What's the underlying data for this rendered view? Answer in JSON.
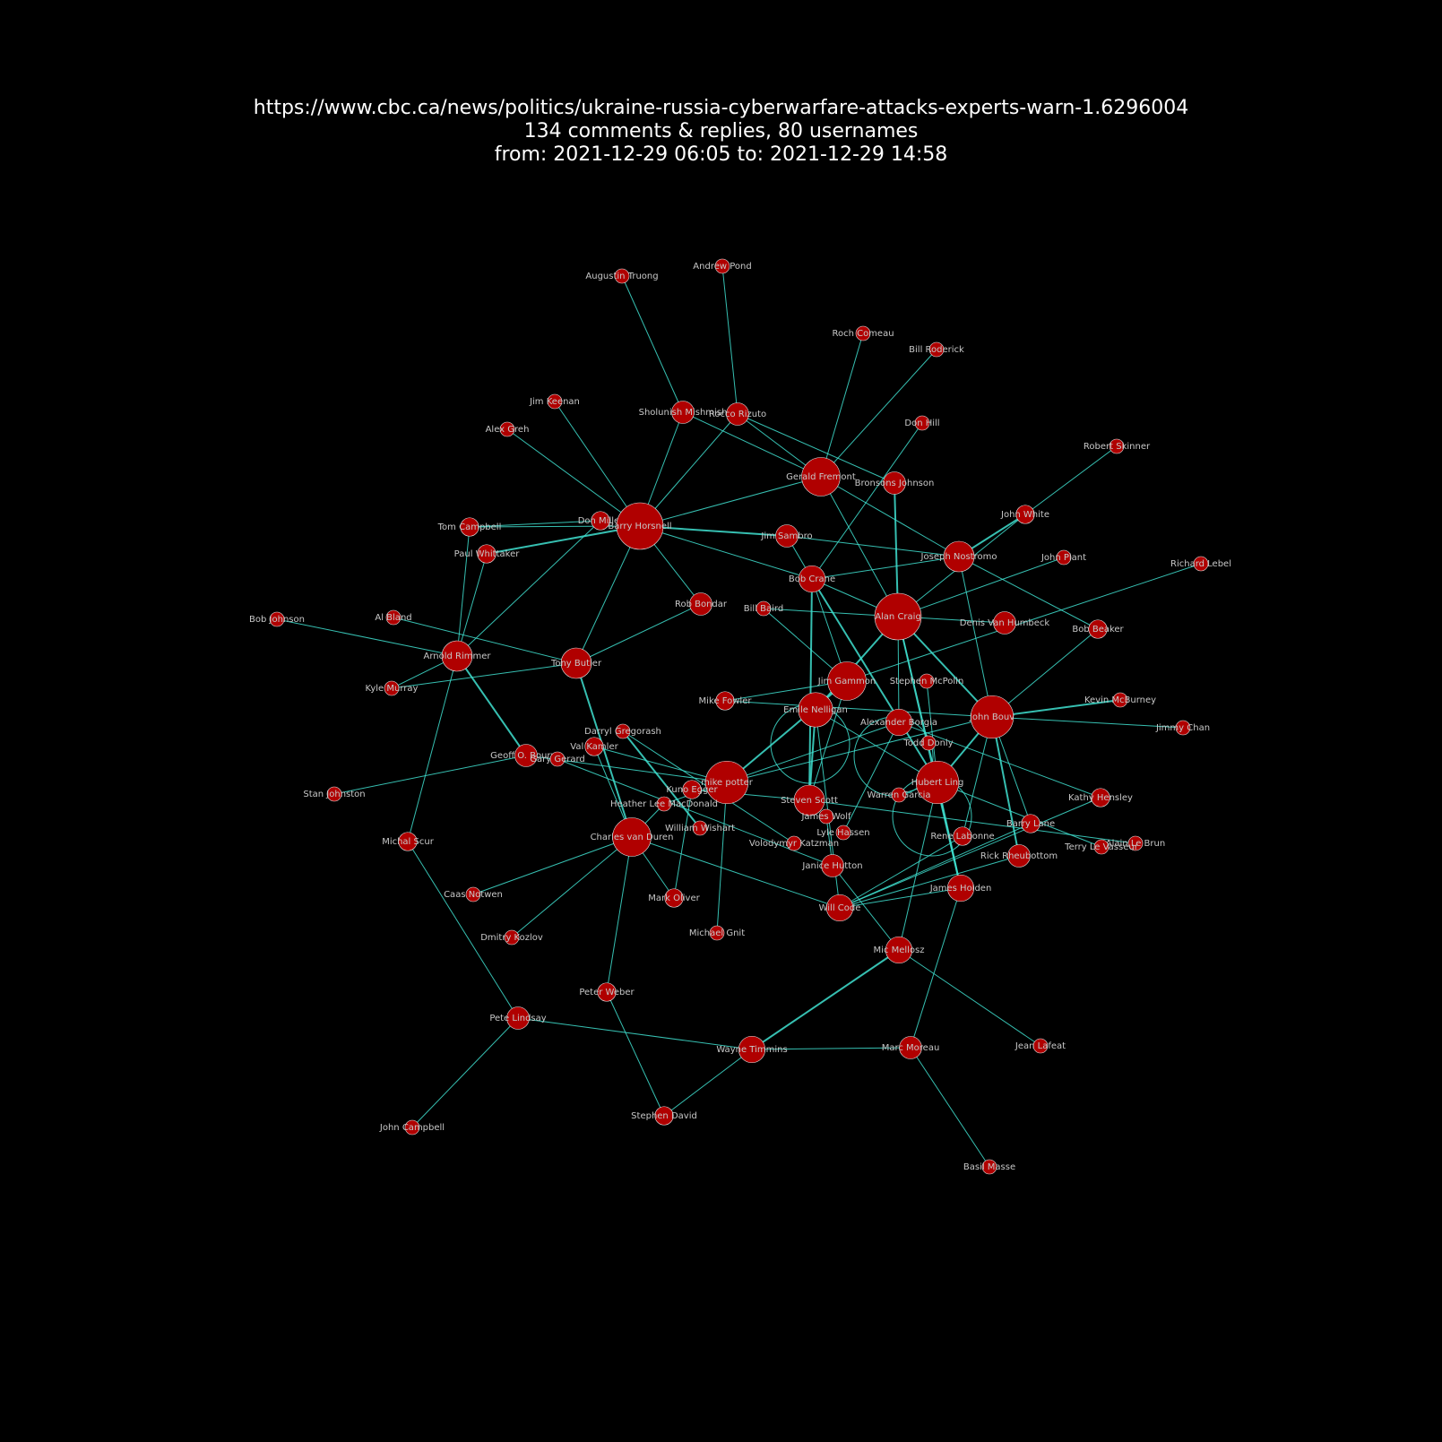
{
  "header": {
    "url": "https://www.cbc.ca/news/politics/ukraine-russia-cyberwarfare-attacks-experts-warn-1.6296004",
    "counts": "134 comments & replies, 80 usernames",
    "range": "from: 2021-12-29 06:05 to: 2021-12-29 14:58"
  },
  "colors": {
    "background": "#000000",
    "node": "#b00000",
    "edge": "#40e0d0",
    "label": "#c8c8c8"
  },
  "nodes": [
    {
      "id": "Augustin Truong",
      "w": 1
    },
    {
      "id": "Andrew Pond",
      "w": 1
    },
    {
      "id": "Roch Comeau",
      "w": 1
    },
    {
      "id": "Bill Roderick",
      "w": 1
    },
    {
      "id": "Jim Keenan",
      "w": 1
    },
    {
      "id": "Sholunish Mishmish",
      "w": 2
    },
    {
      "id": "Rocco Rizuto",
      "w": 2
    },
    {
      "id": "Alex Greh",
      "w": 1
    },
    {
      "id": "Don Hill",
      "w": 1
    },
    {
      "id": "Robert Skinner",
      "w": 1
    },
    {
      "id": "Gerald Fremont",
      "w": 4
    },
    {
      "id": "Bronsons Johnson",
      "w": 2
    },
    {
      "id": "John White",
      "w": 1.5
    },
    {
      "id": "Tom Campbell",
      "w": 1.5
    },
    {
      "id": "Don Miller",
      "w": 1.5
    },
    {
      "id": "Barry Horsnell",
      "w": 5
    },
    {
      "id": "Jim Sambro",
      "w": 2
    },
    {
      "id": "Joseph Nostromo",
      "w": 3
    },
    {
      "id": "John Plant",
      "w": 1
    },
    {
      "id": "Richard Lebel",
      "w": 1
    },
    {
      "id": "Paul Whittaker",
      "w": 1.5
    },
    {
      "id": "Bob Crane",
      "w": 2.5
    },
    {
      "id": "Bob Johnson",
      "w": 1
    },
    {
      "id": "Al Bland",
      "w": 1
    },
    {
      "id": "Rob Bondar",
      "w": 2
    },
    {
      "id": "Bill Baird",
      "w": 1
    },
    {
      "id": "Alan Craig",
      "w": 5
    },
    {
      "id": "Denis Van Humbeck",
      "w": 2
    },
    {
      "id": "Bob Beaker",
      "w": 1.5
    },
    {
      "id": "Arnold Rimmer",
      "w": 3
    },
    {
      "id": "Tony Butler",
      "w": 3
    },
    {
      "id": "Kyle Murray",
      "w": 1
    },
    {
      "id": "Jim Gammon",
      "w": 4
    },
    {
      "id": "Stephen McPolin",
      "w": 1
    },
    {
      "id": "Kevin McBurney",
      "w": 1
    },
    {
      "id": "Mike Fowler",
      "w": 1.5
    },
    {
      "id": "Emile Nelligan",
      "w": 3.5
    },
    {
      "id": "John Bouv",
      "w": 4.5
    },
    {
      "id": "Jimmy Chan",
      "w": 1
    },
    {
      "id": "Darryl Gregorash",
      "w": 1
    },
    {
      "id": "Alexander Borgia",
      "w": 2.5
    },
    {
      "id": "Val Kamler",
      "w": 1.5
    },
    {
      "id": "Todd Donly",
      "w": 1
    },
    {
      "id": "Geoff O. Bourne",
      "w": 2
    },
    {
      "id": "Gary Gerard",
      "w": 1
    },
    {
      "id": "mike potter",
      "w": 4.5
    },
    {
      "id": "Hubert Ling",
      "w": 4.5
    },
    {
      "id": "Kuno Egger",
      "w": 1.5
    },
    {
      "id": "Warren Garcia",
      "w": 1
    },
    {
      "id": "Steven Scott",
      "w": 3
    },
    {
      "id": "Kathy Hensley",
      "w": 1.5
    },
    {
      "id": "Stan Johnston",
      "w": 1
    },
    {
      "id": "Heather Lee MacDonald",
      "w": 1
    },
    {
      "id": "James Wolf",
      "w": 1
    },
    {
      "id": "Barry Lane",
      "w": 1.5
    },
    {
      "id": "William Wishart",
      "w": 1
    },
    {
      "id": "Lyle Hassen",
      "w": 1
    },
    {
      "id": "Rene Labonne",
      "w": 1.5
    },
    {
      "id": "Alain Le Brun",
      "w": 1
    },
    {
      "id": "Michal Scur",
      "w": 1.5
    },
    {
      "id": "Charles van Duren",
      "w": 4
    },
    {
      "id": "Volodymyr Katzman",
      "w": 1
    },
    {
      "id": "Terry Le Vasseur",
      "w": 1
    },
    {
      "id": "Rick Rheubottom",
      "w": 2
    },
    {
      "id": "Janice Hutton",
      "w": 2
    },
    {
      "id": "Caas Notwen",
      "w": 1
    },
    {
      "id": "James Holden",
      "w": 2.5
    },
    {
      "id": "Mark Oliver",
      "w": 1.5
    },
    {
      "id": "Will Code",
      "w": 2.5
    },
    {
      "id": "Dmitry Kozlov",
      "w": 1
    },
    {
      "id": "Michael Gnit",
      "w": 1
    },
    {
      "id": "Mic Mellosz",
      "w": 2.5
    },
    {
      "id": "Peter Weber",
      "w": 1.5
    },
    {
      "id": "Pete Lindsay",
      "w": 2
    },
    {
      "id": "Wayne Timmins",
      "w": 2.5
    },
    {
      "id": "Marc Moreau",
      "w": 2
    },
    {
      "id": "Jean Lafeat",
      "w": 1
    },
    {
      "id": "John Campbell",
      "w": 1
    },
    {
      "id": "Stephen David",
      "w": 1.5
    },
    {
      "id": "Basil Masse",
      "w": 1
    }
  ],
  "edges": [
    [
      "Augustin Truong",
      "Sholunish Mishmish",
      1
    ],
    [
      "Andrew Pond",
      "Rocco Rizuto",
      1
    ],
    [
      "Roch Comeau",
      "Gerald Fremont",
      1
    ],
    [
      "Bill Roderick",
      "Gerald Fremont",
      1
    ],
    [
      "Jim Keenan",
      "Barry Horsnell",
      1
    ],
    [
      "Alex Greh",
      "Barry Horsnell",
      1
    ],
    [
      "Sholunish Mishmish",
      "Barry Horsnell",
      1
    ],
    [
      "Rocco Rizuto",
      "Barry Horsnell",
      1
    ],
    [
      "Sholunish Mishmish",
      "Gerald Fremont",
      1
    ],
    [
      "Rocco Rizuto",
      "Gerald Fremont",
      1
    ],
    [
      "Rocco Rizuto",
      "Bronsons Johnson",
      1
    ],
    [
      "Don Hill",
      "Bob Crane",
      1
    ],
    [
      "Robert Skinner",
      "John White",
      1
    ],
    [
      "Barry Horsnell",
      "Gerald Fremont",
      1
    ],
    [
      "Barry Horsnell",
      "Jim Sambro",
      2
    ],
    [
      "Tom Campbell",
      "Barry Horsnell",
      1
    ],
    [
      "Paul Whittaker",
      "Barry Horsnell",
      2
    ],
    [
      "Don Miller",
      "Arnold Rimmer",
      1
    ],
    [
      "Barry Horsnell",
      "Tony Butler",
      1
    ],
    [
      "Barry Horsnell",
      "Rob Bondar",
      1
    ],
    [
      "Barry Horsnell",
      "Bob Crane",
      1
    ],
    [
      "Gerald Fremont",
      "Joseph Nostromo",
      1
    ],
    [
      "Gerald Fremont",
      "Alan Craig",
      1
    ],
    [
      "Bronsons Johnson",
      "Alan Craig",
      2
    ],
    [
      "Jim Sambro",
      "Joseph Nostromo",
      1
    ],
    [
      "Jim Sambro",
      "Bob Crane",
      1
    ],
    [
      "John White",
      "Joseph Nostromo",
      2
    ],
    [
      "John White",
      "Alan Craig",
      1
    ],
    [
      "Joseph Nostromo",
      "Bob Beaker",
      1
    ],
    [
      "Joseph Nostromo",
      "John Bouv",
      1
    ],
    [
      "John Plant",
      "Alan Craig",
      1
    ],
    [
      "Richard Lebel",
      "Jim Gammon",
      1
    ],
    [
      "Bob Crane",
      "Alan Craig",
      1
    ],
    [
      "Bob Crane",
      "Steven Scott",
      2
    ],
    [
      "Bob Crane",
      "Hubert Ling",
      2
    ],
    [
      "Bob Crane",
      "Jim Gammon",
      1
    ],
    [
      "Bill Baird",
      "Denis Van Humbeck",
      1
    ],
    [
      "Bill Baird",
      "Jim Gammon",
      1
    ],
    [
      "Alan Craig",
      "Emile Nelligan",
      2
    ],
    [
      "Alan Craig",
      "John Bouv",
      2
    ],
    [
      "Alan Craig",
      "James Holden",
      2
    ],
    [
      "Alan Craig",
      "Hubert Ling",
      1
    ],
    [
      "Bob Beaker",
      "John Bouv",
      1
    ],
    [
      "Bob Johnson",
      "Arnold Rimmer",
      1
    ],
    [
      "Al Bland",
      "Tony Butler",
      1
    ],
    [
      "Arnold Rimmer",
      "Tom Campbell",
      1
    ],
    [
      "Arnold Rimmer",
      "Paul Whittaker",
      1
    ],
    [
      "Arnold Rimmer",
      "Geoff O. Bourne",
      2
    ],
    [
      "Arnold Rimmer",
      "Michal Scur",
      1
    ],
    [
      "Kyle Murray",
      "Tony Butler",
      1
    ],
    [
      "Tony Butler",
      "Rob Bondar",
      1
    ],
    [
      "Tony Butler",
      "Charles van Duren",
      2
    ],
    [
      "Jim Gammon",
      "mike potter",
      2
    ],
    [
      "Jim Gammon",
      "Mike Fowler",
      1
    ],
    [
      "Jim Gammon",
      "Steven Scott",
      1
    ],
    [
      "Stephen McPolin",
      "Hubert Ling",
      1
    ],
    [
      "Kevin McBurney",
      "John Bouv",
      2
    ],
    [
      "Mike Fowler",
      "John Bouv",
      1
    ],
    [
      "Emile Nelligan",
      "Steven Scott",
      2
    ],
    [
      "Emile Nelligan",
      "Hubert Ling",
      1
    ],
    [
      "Emile Nelligan",
      "Will Code",
      1
    ],
    [
      "John Bouv",
      "Jimmy Chan",
      1
    ],
    [
      "John Bouv",
      "Hubert Ling",
      2
    ],
    [
      "John Bouv",
      "Rick Rheubottom",
      2
    ],
    [
      "John Bouv",
      "Barry Lane",
      1
    ],
    [
      "John Bouv",
      "Rene Labonne",
      1
    ],
    [
      "John Bouv",
      "mike potter",
      1
    ],
    [
      "Darryl Gregorash",
      "William Wishart",
      2
    ],
    [
      "Alexander Borgia",
      "Alan Craig",
      1
    ],
    [
      "Alexander Borgia",
      "Lyle Hassen",
      1
    ],
    [
      "Alexander Borgia",
      "Kathy Hensley",
      1
    ],
    [
      "Val Kamler",
      "Charles van Duren",
      1
    ],
    [
      "Geoff O. Bourne",
      "Stan Johnston",
      1
    ],
    [
      "Geoff O. Bourne",
      "mike potter",
      1
    ],
    [
      "Gary Gerard",
      "Janice Hutton",
      1
    ],
    [
      "mike potter",
      "Michael Gnit",
      1
    ],
    [
      "mike potter",
      "Val Kamler",
      1
    ],
    [
      "Hubert Ling",
      "James Holden",
      2
    ],
    [
      "Hubert Ling",
      "Mic Mellosz",
      1
    ],
    [
      "Hubert Ling",
      "Warren Garcia",
      1
    ],
    [
      "Hubert Ling",
      "Terry Le Vasseur",
      1
    ],
    [
      "Kuno Egger",
      "Steven Scott",
      1
    ],
    [
      "Kuno Egger",
      "Mark Oliver",
      1
    ],
    [
      "Steven Scott",
      "Alain Le Brun",
      1
    ],
    [
      "Heather Lee MacDonald",
      "Alexander Borgia",
      1
    ],
    [
      "Heather Lee MacDonald",
      "Charles van Duren",
      1
    ],
    [
      "James Wolf",
      "Janice Hutton",
      1
    ],
    [
      "Barry Lane",
      "Will Code",
      1
    ],
    [
      "Kathy Hensley",
      "Will Code",
      1
    ],
    [
      "Rene Labonne",
      "Will Code",
      1
    ],
    [
      "Charles van Duren",
      "Caas Notwen",
      1
    ],
    [
      "Charles van Duren",
      "Dmitry Kozlov",
      1
    ],
    [
      "Charles van Duren",
      "Mark Oliver",
      1
    ],
    [
      "Charles van Duren",
      "Will Code",
      1
    ],
    [
      "Charles van Duren",
      "Peter Weber",
      1
    ],
    [
      "Volodymyr Katzman",
      "Darryl Gregorash",
      1
    ],
    [
      "Rick Rheubottom",
      "Will Code",
      1
    ],
    [
      "Janice Hutton",
      "Mic Mellosz",
      1
    ],
    [
      "James Holden",
      "Marc Moreau",
      1
    ],
    [
      "James Holden",
      "Will Code",
      1
    ],
    [
      "Mic Mellosz",
      "Wayne Timmins",
      2
    ],
    [
      "Mic Mellosz",
      "Jean Lafeat",
      1
    ],
    [
      "Michal Scur",
      "Pete Lindsay",
      1
    ],
    [
      "Pete Lindsay",
      "Wayne Timmins",
      1
    ],
    [
      "Pete Lindsay",
      "John Campbell",
      1
    ],
    [
      "Peter Weber",
      "Stephen David",
      1
    ],
    [
      "Wayne Timmins",
      "Stephen David",
      1
    ],
    [
      "Wayne Timmins",
      "Marc Moreau",
      1
    ],
    [
      "Marc Moreau",
      "Basil Masse",
      1
    ],
    [
      "Don Miller",
      "Tom Campbell",
      1
    ],
    [
      "Kyle Murray",
      "Arnold Rimmer",
      1
    ],
    [
      "Joseph Nostromo",
      "Bob Crane",
      1
    ]
  ],
  "self_loops": [
    "Emile Nelligan",
    "Alexander Borgia",
    "Hubert Ling"
  ]
}
